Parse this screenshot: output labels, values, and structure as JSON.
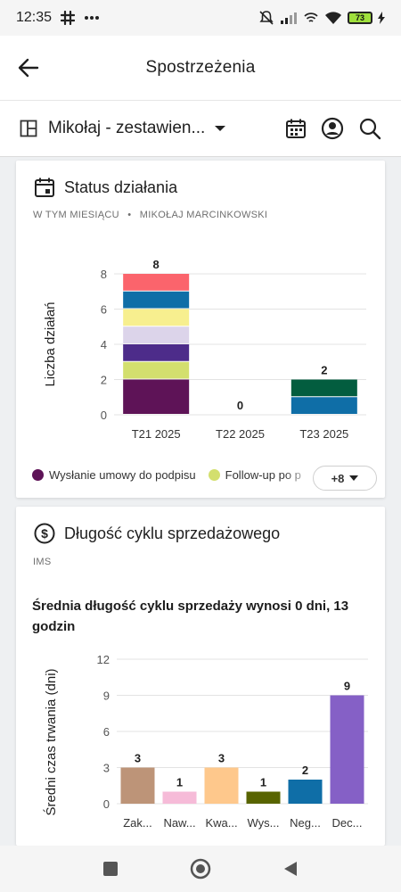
{
  "status_bar": {
    "time": "12:35",
    "icons": [
      "slack-icon",
      "more-dots-icon",
      "mute-icon",
      "signal-icon",
      "hotspot-icon",
      "wifi-icon",
      "battery-icon",
      "charging-icon"
    ],
    "battery_level": "73"
  },
  "app_bar": {
    "title": "Spostrzeżenia"
  },
  "toolbar": {
    "dashboard_name": "Mikołaj - zestawien..."
  },
  "colors": {
    "purple_dark": "#5e1357",
    "olive_light": "#d3df6e",
    "violet": "#4d2c8a",
    "lavender": "#dcd4ea",
    "yellow": "#f7ef8f",
    "blue": "#0f6ea7",
    "salmon": "#fb646c",
    "green_dark": "#035d3f",
    "brown_tan": "#bd9478",
    "pink": "#f6bbd8",
    "peach": "#fec88c",
    "olive": "#586400",
    "purple_bar": "#8560c6"
  },
  "card_status": {
    "title": "Status działania",
    "subtitle_period": "W TYM MIESIĄCU",
    "subtitle_owner": "MIKOŁAJ MARCINKOWSKI",
    "legend": [
      {
        "label": "Wysłanie umowy do podpisu",
        "color": "#5e1357"
      },
      {
        "label": "Follow-up po p",
        "color": "#d3df6e"
      }
    ],
    "more_label": "+8"
  },
  "card_cycle": {
    "title": "Długość cyklu sprzedażowego",
    "subtitle": "IMS",
    "summary": "Średnia długość cyklu sprzedaży wynosi 0 dni, 13 godzin"
  },
  "chart_data": [
    {
      "type": "bar",
      "stacked": true,
      "categories": [
        "T21 2025",
        "T22 2025",
        "T23 2025"
      ],
      "totals": [
        8,
        0,
        2
      ],
      "ylabel": "Liczba działań",
      "ylim": [
        0,
        8
      ],
      "yticks": [
        0,
        2,
        4,
        6,
        8
      ],
      "grid": true,
      "series": [
        {
          "name": "Wysłanie umowy do podpisu",
          "color": "#5e1357",
          "values": [
            2,
            0,
            0
          ]
        },
        {
          "name": "Follow-up po p",
          "color": "#d3df6e",
          "values": [
            1,
            0,
            0
          ]
        },
        {
          "color": "#4d2c8a",
          "values": [
            1,
            0,
            0
          ]
        },
        {
          "color": "#dcd4ea",
          "values": [
            1,
            0,
            0
          ]
        },
        {
          "color": "#f7ef8f",
          "values": [
            1,
            0,
            0
          ]
        },
        {
          "color": "#0f6ea7",
          "values": [
            1,
            0,
            1
          ]
        },
        {
          "color": "#fb646c",
          "values": [
            1,
            0,
            0
          ]
        },
        {
          "color": "#035d3f",
          "values": [
            0,
            0,
            1
          ]
        }
      ]
    },
    {
      "type": "bar",
      "categories": [
        "Zak...",
        "Naw...",
        "Kwa...",
        "Wys...",
        "Neg...",
        "Dec..."
      ],
      "values": [
        3,
        1,
        3,
        1,
        2,
        9
      ],
      "colors": [
        "#bd9478",
        "#f6bbd8",
        "#fec88c",
        "#586400",
        "#0f6ea7",
        "#8560c6"
      ],
      "ylabel": "Średni czas trwania (dni)",
      "ylim": [
        0,
        12
      ],
      "yticks": [
        0,
        3,
        6,
        9,
        12
      ],
      "grid": true
    }
  ],
  "nav_bar": {
    "buttons": [
      "recents-button",
      "home-button",
      "back-button"
    ]
  }
}
